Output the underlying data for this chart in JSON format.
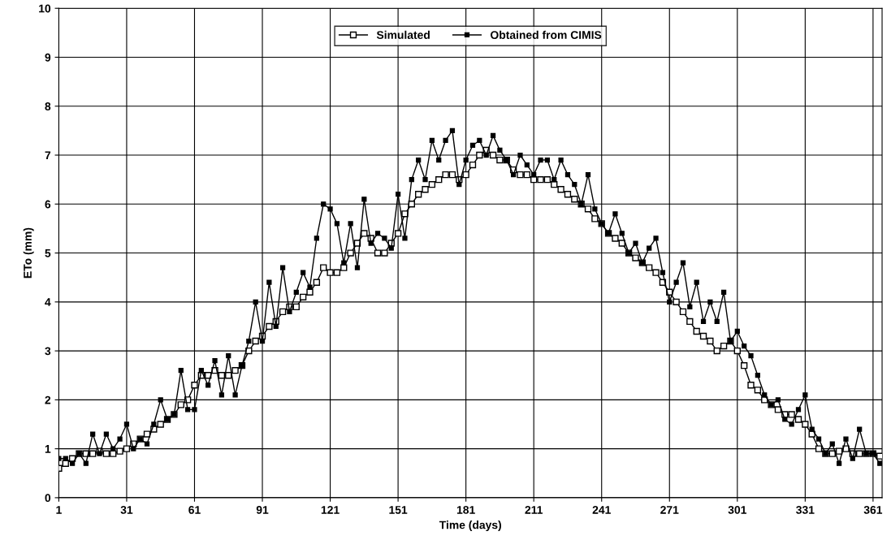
{
  "chart_data": {
    "type": "line",
    "xlabel": "Time (days)",
    "ylabel": "ETo (mm)",
    "x": [
      1,
      4,
      7,
      10,
      13,
      16,
      19,
      22,
      25,
      28,
      31,
      34,
      37,
      40,
      43,
      46,
      49,
      52,
      55,
      58,
      61,
      64,
      67,
      70,
      73,
      76,
      79,
      82,
      85,
      88,
      91,
      94,
      97,
      100,
      103,
      106,
      109,
      112,
      115,
      118,
      121,
      124,
      127,
      130,
      133,
      136,
      139,
      142,
      145,
      148,
      151,
      154,
      157,
      160,
      163,
      166,
      169,
      172,
      175,
      178,
      181,
      184,
      187,
      190,
      193,
      196,
      199,
      202,
      205,
      208,
      211,
      214,
      217,
      220,
      223,
      226,
      229,
      232,
      235,
      238,
      241,
      244,
      247,
      250,
      253,
      256,
      259,
      262,
      265,
      268,
      271,
      274,
      277,
      280,
      283,
      286,
      289,
      292,
      295,
      298,
      301,
      304,
      307,
      310,
      313,
      316,
      319,
      322,
      325,
      328,
      331,
      334,
      337,
      340,
      343,
      346,
      349,
      352,
      355,
      358,
      361,
      364
    ],
    "series": [
      {
        "name": "Simulated",
        "color": "#000000",
        "values": [
          0.6,
          0.7,
          0.8,
          0.9,
          0.9,
          0.9,
          0.95,
          0.9,
          0.9,
          0.95,
          1.0,
          1.1,
          1.2,
          1.3,
          1.4,
          1.5,
          1.6,
          1.7,
          1.9,
          2.0,
          2.3,
          2.5,
          2.5,
          2.6,
          2.5,
          2.5,
          2.6,
          2.7,
          3.0,
          3.2,
          3.3,
          3.5,
          3.6,
          3.8,
          3.9,
          3.9,
          4.1,
          4.2,
          4.4,
          4.7,
          4.6,
          4.6,
          4.7,
          5.0,
          5.2,
          5.4,
          5.3,
          5.0,
          5.0,
          5.2,
          5.4,
          5.8,
          6.0,
          6.2,
          6.3,
          6.4,
          6.5,
          6.6,
          6.6,
          6.5,
          6.6,
          6.8,
          7.0,
          7.1,
          7.0,
          6.9,
          6.9,
          6.7,
          6.6,
          6.6,
          6.5,
          6.5,
          6.5,
          6.4,
          6.3,
          6.2,
          6.1,
          6.0,
          5.9,
          5.7,
          5.6,
          5.4,
          5.3,
          5.2,
          5.0,
          4.9,
          4.8,
          4.7,
          4.6,
          4.4,
          4.2,
          4.0,
          3.8,
          3.6,
          3.4,
          3.3,
          3.2,
          3.0,
          3.1,
          3.2,
          3.0,
          2.7,
          2.3,
          2.2,
          2.0,
          1.9,
          1.8,
          1.7,
          1.7,
          1.6,
          1.5,
          1.3,
          1.0,
          0.9,
          0.9,
          0.95,
          1.0,
          0.9,
          0.9,
          0.9,
          0.9,
          0.85
        ]
      },
      {
        "name": "Obtained from CIMIS",
        "color": "#000000",
        "values": [
          0.8,
          0.8,
          0.7,
          0.9,
          0.7,
          1.3,
          0.9,
          1.3,
          1.0,
          1.2,
          1.5,
          1.0,
          1.2,
          1.1,
          1.5,
          2.0,
          1.6,
          1.7,
          2.6,
          1.8,
          1.8,
          2.6,
          2.3,
          2.8,
          2.1,
          2.9,
          2.1,
          2.7,
          3.2,
          4.0,
          3.2,
          4.4,
          3.5,
          4.7,
          3.8,
          4.2,
          4.6,
          4.3,
          5.3,
          6.0,
          5.9,
          5.6,
          4.8,
          5.6,
          4.7,
          6.1,
          5.2,
          5.4,
          5.3,
          5.1,
          6.2,
          5.3,
          6.5,
          6.9,
          6.5,
          7.3,
          6.9,
          7.3,
          7.5,
          6.4,
          6.9,
          7.2,
          7.3,
          7.0,
          7.4,
          7.1,
          6.9,
          6.6,
          7.0,
          6.8,
          6.6,
          6.9,
          6.9,
          6.5,
          6.9,
          6.6,
          6.4,
          6.0,
          6.6,
          5.9,
          5.6,
          5.4,
          5.8,
          5.4,
          5.0,
          5.2,
          4.8,
          5.1,
          5.3,
          4.6,
          4.0,
          4.4,
          4.8,
          3.9,
          4.4,
          3.6,
          4.0,
          3.6,
          4.2,
          3.2,
          3.4,
          3.1,
          2.9,
          2.5,
          2.1,
          1.9,
          2.0,
          1.6,
          1.5,
          1.8,
          2.1,
          1.4,
          1.2,
          0.9,
          1.1,
          0.7,
          1.2,
          0.8,
          1.4,
          0.9,
          0.9,
          0.7
        ]
      }
    ],
    "xlim": [
      1,
      365
    ],
    "xticks": [
      1,
      31,
      61,
      91,
      121,
      151,
      181,
      211,
      241,
      271,
      301,
      331,
      361
    ],
    "ylim": [
      0,
      10
    ],
    "yticks": [
      0,
      1,
      2,
      3,
      4,
      5,
      6,
      7,
      8,
      9,
      10
    ],
    "grid": true,
    "legend": "top",
    "marker": "square",
    "line_style": "solid"
  }
}
